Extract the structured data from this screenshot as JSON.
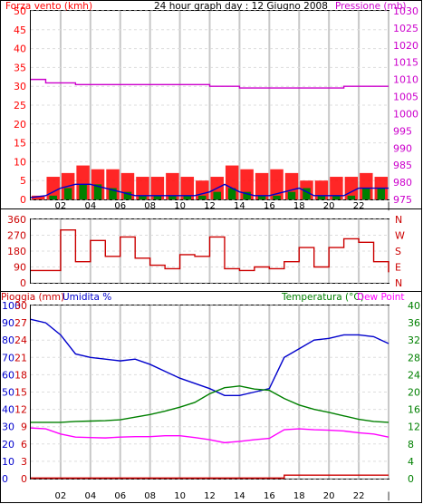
{
  "colors": {
    "wind": "#ff0000",
    "gust_bars": "#ff0000",
    "avg_wind": "#0000cc",
    "avg_bars": "#008000",
    "pressure": "#cc00cc",
    "direction": "#cc0000",
    "temperature": "#008000",
    "humidity": "#0000cc",
    "dewpoint": "#ff00ff",
    "rain": "#cc0000",
    "grid_vertical": "#c8c8c8",
    "grid_horizontal": "#dddddd"
  },
  "header": {
    "title": "24 hour graph day : 12 Giugno 2008",
    "wind_title": "Forza vento (kmh)",
    "pressure_title": "Pressione (mb)"
  },
  "lower_labels": {
    "rain": "Pioggia (mm)",
    "humidity": "Umidita %",
    "temperature": "Temperatura (°C)",
    "dewpoint": "Dew Point"
  },
  "x_ticks": [
    "02",
    "04",
    "06",
    "08",
    "10",
    "12",
    "14",
    "16",
    "18",
    "20",
    "22",
    "|"
  ],
  "chart_data": [
    {
      "type": "bar",
      "panel": "wind-pressure",
      "title": "24 hour graph day : 12 Giugno 2008",
      "ylabel": "Forza vento (kmh)",
      "y2label": "Pressione (mb)",
      "ylim": [
        0,
        50
      ],
      "y2lim": [
        975,
        1030
      ],
      "y_ticks": [
        "0",
        "5",
        "10",
        "15",
        "20",
        "25",
        "30",
        "35",
        "40",
        "45",
        "50"
      ],
      "y2_ticks": [
        "975",
        "980",
        "985",
        "990",
        "995",
        "1000",
        "1005",
        "1010",
        "1015",
        "1020",
        "1025",
        "1030"
      ],
      "x_hours": [
        0,
        1,
        2,
        3,
        4,
        5,
        6,
        7,
        8,
        9,
        10,
        11,
        12,
        13,
        14,
        15,
        16,
        17,
        18,
        19,
        20,
        21,
        22,
        23,
        24
      ],
      "series": [
        {
          "kind": "bars",
          "values": [
            1,
            6,
            7,
            9,
            8,
            8,
            7,
            6,
            6,
            7,
            6,
            5,
            6,
            9,
            8,
            7,
            8,
            7,
            5,
            5,
            6,
            6,
            7,
            6,
            6
          ]
        },
        {
          "kind": "bars",
          "values": [
            0,
            1,
            3,
            4,
            4,
            3,
            2,
            1,
            1,
            1,
            1,
            1,
            2,
            3,
            2,
            1,
            1,
            2,
            3,
            1,
            1,
            1,
            3,
            3,
            3
          ]
        },
        {
          "kind": "line",
          "values": [
            0.5,
            1,
            3,
            4,
            4,
            3,
            2,
            1,
            1,
            1,
            1,
            1,
            2,
            4,
            2,
            1,
            1,
            2,
            3,
            1,
            1,
            1,
            3,
            3,
            3
          ]
        },
        {
          "kind": "line",
          "axis": "right",
          "values": [
            1010,
            1009,
            1009,
            1008.5,
            1008.5,
            1008.5,
            1008.5,
            1008.5,
            1008.5,
            1008.5,
            1008.5,
            1008.5,
            1008,
            1008,
            1007.5,
            1007.5,
            1007.5,
            1007.5,
            1007.5,
            1007.5,
            1007.5,
            1008,
            1008,
            1008,
            1008
          ]
        }
      ]
    },
    {
      "type": "line",
      "panel": "wind-direction",
      "ylim": [
        0,
        360
      ],
      "y_ticks": [
        "0",
        "90",
        "180",
        "270",
        "360"
      ],
      "y2_ticks": [
        "N",
        "E",
        "S",
        "W",
        "N"
      ],
      "x_hours": [
        0,
        1,
        2,
        3,
        4,
        5,
        6,
        7,
        8,
        9,
        10,
        11,
        12,
        13,
        14,
        15,
        16,
        17,
        18,
        19,
        20,
        21,
        22,
        23,
        24
      ],
      "series": [
        {
          "values": [
            70,
            70,
            300,
            120,
            240,
            150,
            260,
            140,
            100,
            80,
            160,
            150,
            260,
            80,
            70,
            90,
            80,
            120,
            200,
            90,
            200,
            250,
            230,
            120,
            60
          ]
        }
      ]
    },
    {
      "type": "line",
      "panel": "rain-humidity-temperature",
      "y_left_rain_ticks": [
        "0",
        "3",
        "6",
        "9",
        "12",
        "15",
        "18",
        "21",
        "24",
        "27",
        "30"
      ],
      "y_left_humidity_ticks": [
        "0",
        "10",
        "20",
        "30",
        "40",
        "50",
        "60",
        "70",
        "80",
        "90",
        "100"
      ],
      "y_right_ticks": [
        "0",
        "4",
        "8",
        "12",
        "16",
        "20",
        "24",
        "28",
        "32",
        "36",
        "40"
      ],
      "rain_lim": [
        0,
        30
      ],
      "humidity_lim": [
        0,
        100
      ],
      "temp_lim": [
        0,
        40
      ],
      "x_hours": [
        0,
        1,
        2,
        3,
        4,
        5,
        6,
        7,
        8,
        9,
        10,
        11,
        12,
        13,
        14,
        15,
        16,
        17,
        18,
        19,
        20,
        21,
        22,
        23,
        24
      ],
      "series": [
        {
          "axis": "humidity",
          "values": [
            92,
            90,
            83,
            72,
            70,
            69,
            68,
            69,
            66,
            62,
            58,
            55,
            52,
            48,
            48,
            50,
            52,
            70,
            75,
            80,
            81,
            83,
            83,
            82,
            78
          ]
        },
        {
          "axis": "temperature",
          "values": [
            13,
            13,
            13,
            13.2,
            13.3,
            13.4,
            13.6,
            14.2,
            14.8,
            15.6,
            16.5,
            17.6,
            19.6,
            21,
            21.4,
            20.7,
            20.4,
            18.5,
            17,
            16,
            15.3,
            14.5,
            13.7,
            13.2,
            13
          ]
        },
        {
          "axis": "temperature",
          "values": [
            11.7,
            11.5,
            10.3,
            9.6,
            9.5,
            9.4,
            9.6,
            9.7,
            9.7,
            9.9,
            9.9,
            9.5,
            9.0,
            8.3,
            8.6,
            9.0,
            9.3,
            11.3,
            11.5,
            11.3,
            11.2,
            11.0,
            10.6,
            10.3,
            9.6
          ]
        },
        {
          "axis": "rain",
          "values": [
            0.1,
            0.1,
            0.1,
            0.1,
            0.1,
            0.1,
            0.1,
            0.1,
            0.1,
            0.1,
            0.1,
            0.1,
            0.1,
            0.1,
            0.1,
            0.1,
            0.1,
            0.6,
            0.6,
            0.6,
            0.6,
            0.6,
            0.6,
            0.6,
            0.6
          ]
        }
      ]
    }
  ]
}
